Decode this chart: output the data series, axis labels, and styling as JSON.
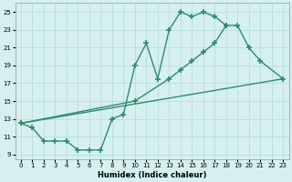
{
  "curve1_x": [
    0,
    1,
    2,
    3,
    4,
    5,
    6,
    7,
    8,
    9,
    10,
    11,
    12,
    13,
    14,
    15,
    16,
    17,
    18
  ],
  "curve1_y": [
    12.5,
    12.0,
    10.5,
    10.5,
    10.5,
    9.5,
    9.5,
    9.5,
    13.0,
    13.5,
    19.0,
    21.5,
    17.5,
    23.0,
    25.0,
    24.5,
    25.0,
    24.5,
    23.5
  ],
  "curve2_x": [
    0,
    10,
    13,
    14,
    15,
    16,
    17,
    18,
    19,
    20,
    21,
    23
  ],
  "curve2_y": [
    12.5,
    15.0,
    17.5,
    18.5,
    19.5,
    20.5,
    21.5,
    23.5,
    23.5,
    21.0,
    19.5,
    17.5
  ],
  "curve3_x": [
    0,
    23
  ],
  "curve3_y": [
    12.5,
    17.5
  ],
  "color": "#2e8b6e",
  "bg_color": "#d6f0f0",
  "grid_color": "#b8dede",
  "xlabel": "Humidex (Indice chaleur)",
  "xlim": [
    -0.5,
    23.5
  ],
  "ylim": [
    8.5,
    26.0
  ],
  "yticks": [
    9,
    11,
    13,
    15,
    17,
    19,
    21,
    23,
    25
  ],
  "xticks": [
    0,
    1,
    2,
    3,
    4,
    5,
    6,
    7,
    8,
    9,
    10,
    11,
    12,
    13,
    14,
    15,
    16,
    17,
    18,
    19,
    20,
    21,
    22,
    23
  ]
}
